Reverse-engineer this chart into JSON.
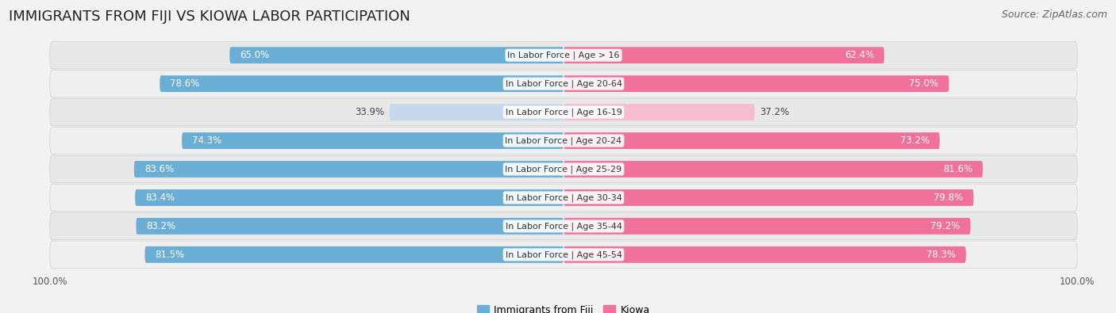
{
  "title": "IMMIGRANTS FROM FIJI VS KIOWA LABOR PARTICIPATION",
  "source": "Source: ZipAtlas.com",
  "categories": [
    "In Labor Force | Age > 16",
    "In Labor Force | Age 20-64",
    "In Labor Force | Age 16-19",
    "In Labor Force | Age 20-24",
    "In Labor Force | Age 25-29",
    "In Labor Force | Age 30-34",
    "In Labor Force | Age 35-44",
    "In Labor Force | Age 45-54"
  ],
  "fiji_values": [
    65.0,
    78.6,
    33.9,
    74.3,
    83.6,
    83.4,
    83.2,
    81.5
  ],
  "kiowa_values": [
    62.4,
    75.0,
    37.2,
    73.2,
    81.6,
    79.8,
    79.2,
    78.3
  ],
  "fiji_color": "#6aaed6",
  "fiji_color_light": "#c6d9ec",
  "kiowa_color": "#f0719a",
  "kiowa_color_light": "#f7bcd0",
  "bg_color": "#f2f2f2",
  "row_bg_odd": "#e8e8e8",
  "row_bg_even": "#f8f8f8",
  "max_value": 100.0,
  "title_fontsize": 13,
  "source_fontsize": 9,
  "label_fontsize": 8.5,
  "category_fontsize": 8.0,
  "legend_fontsize": 9,
  "bar_height": 0.58
}
